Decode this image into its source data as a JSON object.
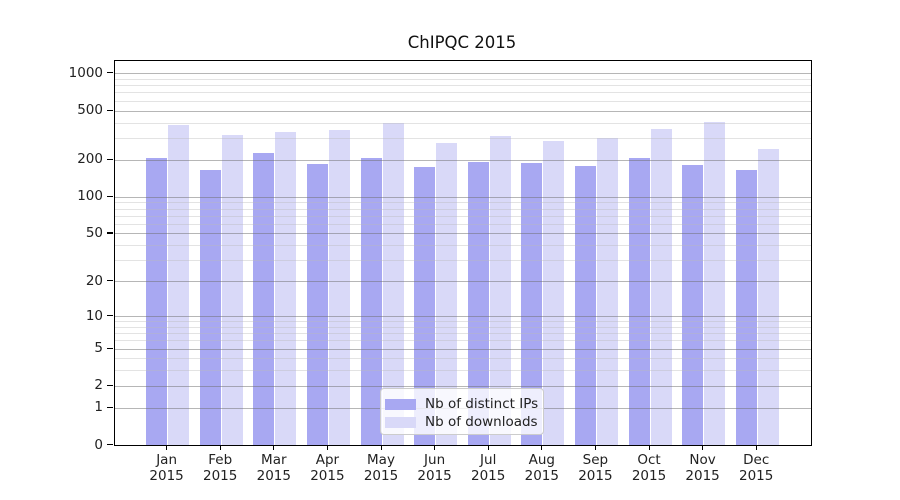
{
  "chart_data": {
    "type": "bar",
    "title": "ChIPQC 2015",
    "categories": [
      "Jan",
      "Feb",
      "Mar",
      "Apr",
      "May",
      "Jun",
      "Jul",
      "Aug",
      "Sep",
      "Oct",
      "Nov",
      "Dec"
    ],
    "category_year": "2015",
    "series": [
      {
        "name": "Nb of distinct IPs",
        "color": "#a8a8f2",
        "values": [
          210,
          165,
          228,
          185,
          210,
          176,
          195,
          188,
          180,
          210,
          181,
          165
        ]
      },
      {
        "name": "Nb of downloads",
        "color": "#d9d9f8",
        "values": [
          384,
          321,
          337,
          348,
          399,
          275,
          312,
          286,
          304,
          357,
          405,
          246
        ]
      }
    ],
    "y_ticks": [
      0,
      1,
      2,
      5,
      10,
      20,
      50,
      100,
      200,
      500,
      1000
    ],
    "y_minor_ticks": [
      3,
      4,
      6,
      7,
      8,
      9,
      30,
      40,
      60,
      70,
      80,
      90,
      300,
      400,
      600,
      700,
      800,
      900
    ],
    "y_scale": "log10(value+1)",
    "ylim": [
      0,
      1280
    ],
    "xlabel": "",
    "ylabel": "",
    "grid": true,
    "legend_position": "lower center",
    "colors": {
      "background": "#ffffff",
      "axis": "#000000",
      "major_grid": "#b0b0b0",
      "minor_grid": "#e0e0e0",
      "text": "#222222"
    }
  }
}
